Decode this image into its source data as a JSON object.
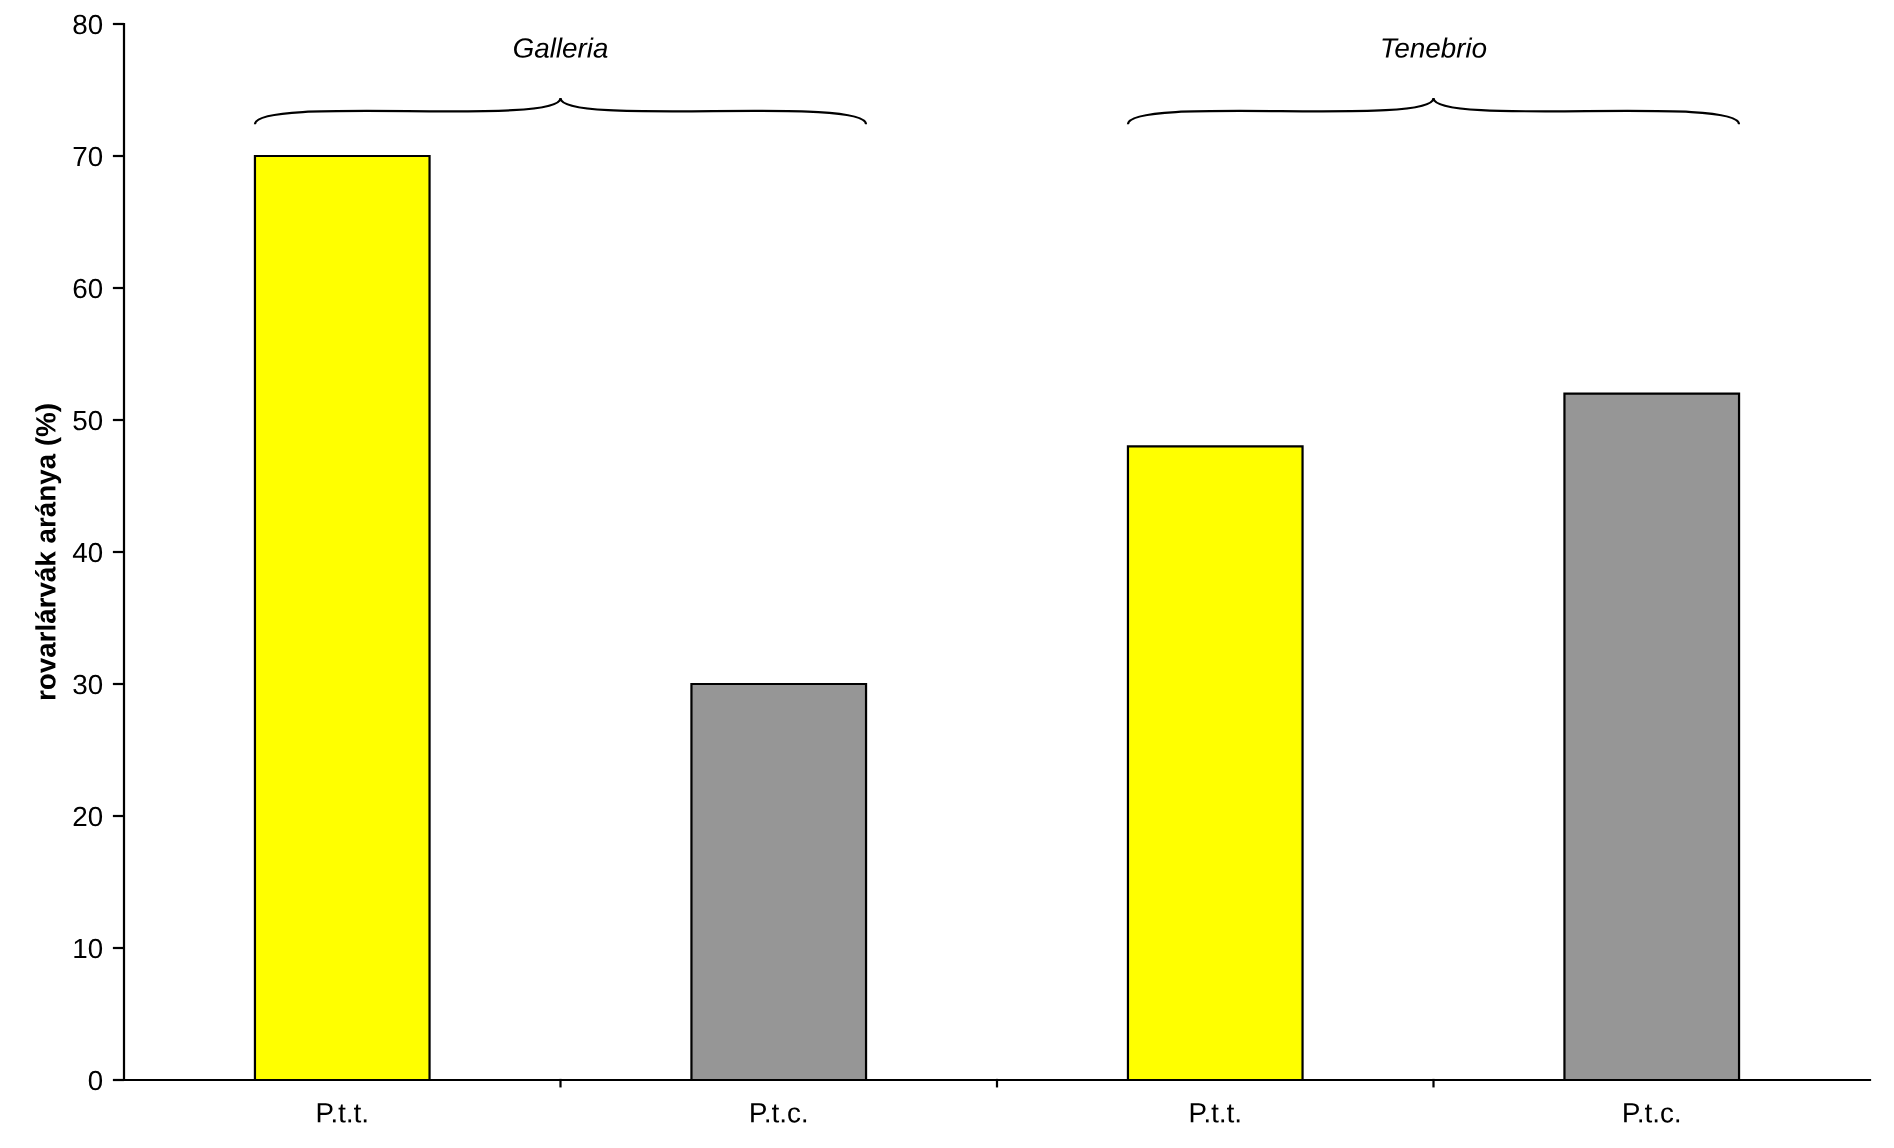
{
  "chart_data": {
    "type": "bar",
    "ylabel": "rovarlárvák aránya (%)",
    "categories": [
      "P.t.t.",
      "P.t.c.",
      "P.t.t.",
      "P.t.c."
    ],
    "values": [
      70,
      30,
      48,
      52
    ],
    "colors": [
      "#ffff00",
      "#969696",
      "#ffff00",
      "#969696"
    ],
    "annotations": [
      "Galleria",
      "Tenebrio"
    ],
    "ylim": [
      0,
      80
    ],
    "yticks": [
      0,
      10,
      20,
      30,
      40,
      50,
      60,
      70,
      80
    ],
    "grid": false
  }
}
